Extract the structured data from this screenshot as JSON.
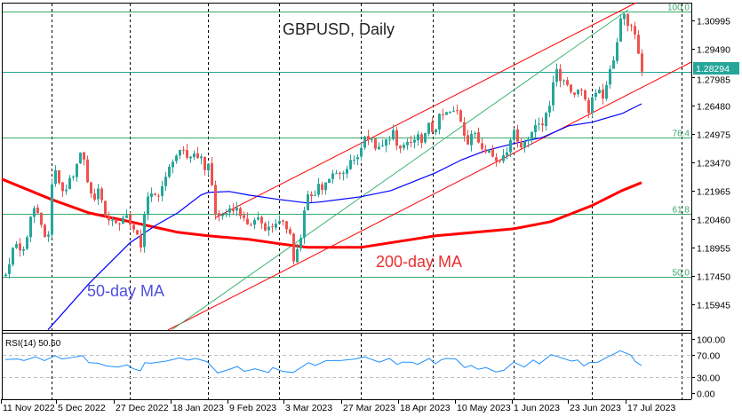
{
  "chart_data": {
    "type": "candlestick",
    "title": "GBPUSD, Daily",
    "symbol": "GBPUSD",
    "timeframe": "Daily",
    "bars": 180,
    "ylim": [
      1.1461,
      1.3209
    ],
    "price_ticks": [
      "1.30995",
      "1.29490",
      "1.27985",
      "1.26480",
      "1.24975",
      "1.23470",
      "1.21965",
      "1.20460",
      "1.18955",
      "1.17450",
      "1.15945"
    ],
    "date_ticks": [
      "11 Nov 2022",
      "5 Dec 2022",
      "27 Dec 2022",
      "18 Jan 2023",
      "9 Feb 2023",
      "3 Mar 2023",
      "27 Mar 2023",
      "18 Apr 2023",
      "10 May 2023",
      "1 Jun 2023",
      "23 Jun 2023",
      "17 Jul 2023"
    ],
    "current_price": "1.28294",
    "close_path": [
      [
        0,
        1.1766
      ],
      [
        1,
        1.1799
      ],
      [
        2,
        1.1893
      ],
      [
        3,
        1.1917
      ],
      [
        4.25,
        1.1884
      ],
      [
        5.5,
        1.187
      ],
      [
        6.75,
        1.2048
      ],
      [
        8,
        1.2105
      ],
      [
        9.75,
        1.2058
      ],
      [
        11,
        1.1949
      ],
      [
        12.25,
        1.1964
      ],
      [
        13,
        1.2236
      ],
      [
        14,
        1.2293
      ],
      [
        14.75,
        1.2269
      ],
      [
        15.5,
        1.2199
      ],
      [
        16.5,
        1.2199
      ],
      [
        18,
        1.2246
      ],
      [
        19.25,
        1.2269
      ],
      [
        20.5,
        1.2363
      ],
      [
        21.75,
        1.2419
      ],
      [
        22.75,
        1.2269
      ],
      [
        23.5,
        1.2175
      ],
      [
        24.75,
        1.2152
      ],
      [
        26,
        1.2199
      ],
      [
        27.25,
        1.2152
      ],
      [
        28,
        1.2048
      ],
      [
        29.75,
        1.2058
      ],
      [
        31,
        1.2025
      ],
      [
        32.25,
        1.2025
      ],
      [
        33.5,
        1.2081
      ],
      [
        35,
        1.2034
      ],
      [
        36,
        1.1987
      ],
      [
        38,
        1.1907
      ],
      [
        39,
        1.2081
      ],
      [
        40.25,
        1.2175
      ],
      [
        41.5,
        1.2166
      ],
      [
        42.75,
        1.2175
      ],
      [
        44,
        1.2222
      ],
      [
        45.25,
        1.2269
      ],
      [
        46.75,
        1.2363
      ],
      [
        48,
        1.2387
      ],
      [
        49.75,
        1.2401
      ],
      [
        51,
        1.2373
      ],
      [
        52.25,
        1.2387
      ],
      [
        53.5,
        1.2401
      ],
      [
        55,
        1.2363
      ],
      [
        56,
        1.2316
      ],
      [
        57.5,
        1.2363
      ],
      [
        58.5,
        1.2081
      ],
      [
        59.75,
        1.2058
      ],
      [
        61,
        1.2081
      ],
      [
        62.25,
        1.2058
      ],
      [
        63.5,
        1.2105
      ],
      [
        64.75,
        1.2105
      ],
      [
        66,
        1.2081
      ],
      [
        67,
        1.2034
      ],
      [
        68.5,
        1.2011
      ],
      [
        69.75,
        1.2034
      ],
      [
        71,
        1.2058
      ],
      [
        72.5,
        1.2011
      ],
      [
        74.25,
        1.1996
      ],
      [
        76,
        1.2034
      ],
      [
        77,
        1.2025
      ],
      [
        78.5,
        1.2011
      ],
      [
        80,
        1.1987
      ],
      [
        81,
        1.1822
      ],
      [
        82,
        1.1893
      ],
      [
        83.5,
        1.1964
      ],
      [
        84.25,
        1.2142
      ],
      [
        85.25,
        1.2184
      ],
      [
        86.5,
        1.2152
      ],
      [
        87.75,
        1.2246
      ],
      [
        89,
        1.2199
      ],
      [
        90.25,
        1.2269
      ],
      [
        91.75,
        1.2269
      ],
      [
        93.5,
        1.2293
      ],
      [
        94.75,
        1.2269
      ],
      [
        96.5,
        1.234
      ],
      [
        98,
        1.2363
      ],
      [
        99.75,
        1.2401
      ],
      [
        101,
        1.2504
      ],
      [
        102.25,
        1.2466
      ],
      [
        103.5,
        1.2448
      ],
      [
        104.75,
        1.241
      ],
      [
        106,
        1.2434
      ],
      [
        107.75,
        1.248
      ],
      [
        109,
        1.2513
      ],
      [
        110.25,
        1.2396
      ],
      [
        111.5,
        1.2434
      ],
      [
        113.5,
        1.2457
      ],
      [
        114.75,
        1.2443
      ],
      [
        116,
        1.248
      ],
      [
        117.5,
        1.2466
      ],
      [
        119,
        1.2542
      ],
      [
        120.5,
        1.2504
      ],
      [
        121.75,
        1.2584
      ],
      [
        123.5,
        1.2598
      ],
      [
        124.5,
        1.2612
      ],
      [
        126,
        1.2612
      ],
      [
        127.25,
        1.2622
      ],
      [
        128.5,
        1.2538
      ],
      [
        129.75,
        1.2448
      ],
      [
        131,
        1.2504
      ],
      [
        132.5,
        1.248
      ],
      [
        133.5,
        1.2434
      ],
      [
        134.75,
        1.2419
      ],
      [
        136,
        1.2434
      ],
      [
        137.25,
        1.2363
      ],
      [
        138.5,
        1.2349
      ],
      [
        139.75,
        1.2387
      ],
      [
        141,
        1.2419
      ],
      [
        142.25,
        1.25
      ],
      [
        143.5,
        1.2504
      ],
      [
        144.75,
        1.2434
      ],
      [
        146,
        1.2457
      ],
      [
        147.5,
        1.248
      ],
      [
        148.5,
        1.2551
      ],
      [
        149.5,
        1.2574
      ],
      [
        151,
        1.2528
      ],
      [
        152,
        1.2612
      ],
      [
        153,
        1.2659
      ],
      [
        154,
        1.2786
      ],
      [
        155,
        1.2824
      ],
      [
        156,
        1.2786
      ],
      [
        157,
        1.2795
      ],
      [
        157.75,
        1.2763
      ],
      [
        159,
        1.2739
      ],
      [
        160,
        1.2706
      ],
      [
        161,
        1.2739
      ],
      [
        162.25,
        1.2748
      ],
      [
        163.25,
        1.2645
      ],
      [
        164,
        1.2622
      ],
      [
        165,
        1.2692
      ],
      [
        166,
        1.2701
      ],
      [
        167,
        1.2716
      ],
      [
        168,
        1.2701
      ],
      [
        169,
        1.2739
      ],
      [
        170,
        1.2833
      ],
      [
        171,
        1.2904
      ],
      [
        172,
        1.2998
      ],
      [
        173,
        1.3115
      ],
      [
        174.25,
        1.3124
      ],
      [
        175.25,
        1.3077
      ],
      [
        176.5,
        1.3044
      ],
      [
        177.5,
        1.2974
      ],
      [
        178.5,
        1.2889
      ],
      [
        179,
        1.28294
      ]
    ],
    "ma50": {
      "label": "50-day MA",
      "color": "#0000ff",
      "points": [
        [
          12,
          1.1461
        ],
        [
          23.5,
          1.1705
        ],
        [
          35,
          1.1921
        ],
        [
          42,
          1.2011
        ],
        [
          48.5,
          1.2081
        ],
        [
          55,
          1.2175
        ],
        [
          57,
          1.2189
        ],
        [
          63,
          1.2194
        ],
        [
          68.5,
          1.2175
        ],
        [
          77,
          1.2152
        ],
        [
          85,
          1.2133
        ],
        [
          88.5,
          1.2138
        ],
        [
          100,
          1.2166
        ],
        [
          108.5,
          1.2199
        ],
        [
          121,
          1.2293
        ],
        [
          128.5,
          1.2363
        ],
        [
          135,
          1.241
        ],
        [
          143,
          1.2448
        ],
        [
          151,
          1.248
        ],
        [
          158.5,
          1.2542
        ],
        [
          165,
          1.2561
        ],
        [
          173.5,
          1.2607
        ],
        [
          179,
          1.2659
        ]
      ]
    },
    "ma200": {
      "label": "200-day MA",
      "color": "#ff0000",
      "points": [
        [
          -1,
          1.226
        ],
        [
          13,
          1.2152
        ],
        [
          23.5,
          1.2081
        ],
        [
          35,
          1.2034
        ],
        [
          48.5,
          1.1978
        ],
        [
          57,
          1.1959
        ],
        [
          68.5,
          1.194
        ],
        [
          77,
          1.1917
        ],
        [
          85,
          1.1898
        ],
        [
          100,
          1.1898
        ],
        [
          121,
          1.1959
        ],
        [
          143,
          1.1996
        ],
        [
          153.5,
          1.2034
        ],
        [
          165,
          1.2119
        ],
        [
          173.5,
          1.2199
        ],
        [
          179,
          1.2241
        ]
      ]
    },
    "fib_levels": [
      {
        "label": "100.0",
        "price": 1.3148
      },
      {
        "label": "76.4",
        "price": 1.2481
      },
      {
        "label": "61.8",
        "price": 1.2076
      },
      {
        "label": "50.0",
        "price": 1.1743
      }
    ],
    "rsi": {
      "label": "RSI(14) 50.60",
      "period": 14,
      "last": 50.6,
      "ticks": [
        "100.00",
        "70.00",
        "30.00",
        "0.00"
      ],
      "levels": [
        70,
        30
      ],
      "points": [
        [
          0,
          62
        ],
        [
          3.5,
          63
        ],
        [
          5.25,
          60
        ],
        [
          8.5,
          67
        ],
        [
          11,
          60
        ],
        [
          14,
          69
        ],
        [
          16,
          63
        ],
        [
          21.75,
          69
        ],
        [
          23.5,
          56
        ],
        [
          26,
          55
        ],
        [
          28.5,
          50
        ],
        [
          31.75,
          48
        ],
        [
          34.25,
          52
        ],
        [
          36,
          45
        ],
        [
          38,
          41
        ],
        [
          39.25,
          56
        ],
        [
          41,
          55
        ],
        [
          45.25,
          59
        ],
        [
          49,
          65
        ],
        [
          51.5,
          61
        ],
        [
          53.5,
          64
        ],
        [
          56.75,
          58
        ],
        [
          59.75,
          37
        ],
        [
          63.5,
          45
        ],
        [
          65.25,
          49
        ],
        [
          67.25,
          40
        ],
        [
          70.25,
          45
        ],
        [
          74,
          38
        ],
        [
          75.25,
          47
        ],
        [
          78,
          40
        ],
        [
          81,
          38
        ],
        [
          85.25,
          56
        ],
        [
          87.25,
          51
        ],
        [
          90.25,
          60
        ],
        [
          94.25,
          60
        ],
        [
          98.5,
          63
        ],
        [
          101,
          67
        ],
        [
          105.25,
          57
        ],
        [
          108,
          64
        ],
        [
          110.25,
          53
        ],
        [
          111.75,
          57
        ],
        [
          114.25,
          57
        ],
        [
          116,
          53
        ],
        [
          119.25,
          64
        ],
        [
          121,
          54
        ],
        [
          122.75,
          62
        ],
        [
          124.25,
          64
        ],
        [
          126.75,
          63
        ],
        [
          129.25,
          47
        ],
        [
          131,
          51
        ],
        [
          133,
          44
        ],
        [
          135.25,
          47
        ],
        [
          138,
          39
        ],
        [
          140.25,
          42
        ],
        [
          143,
          57
        ],
        [
          146,
          48
        ],
        [
          148.5,
          61
        ],
        [
          150.25,
          54
        ],
        [
          153.5,
          71
        ],
        [
          156,
          66
        ],
        [
          159.25,
          59
        ],
        [
          161,
          61
        ],
        [
          162.75,
          50
        ],
        [
          164.25,
          56
        ],
        [
          166.75,
          57
        ],
        [
          169.25,
          66
        ],
        [
          173,
          78
        ],
        [
          176,
          70
        ],
        [
          177.25,
          58
        ],
        [
          179,
          50.6
        ]
      ]
    },
    "annotations": {
      "ma50": "50-day MA",
      "ma200": "200-day MA"
    },
    "colors": {
      "up": "#26a69a",
      "down": "#ef5350",
      "fib": "#3aa86a",
      "price_line": "#26a69a",
      "rsi": "#1e90ff",
      "channel": "#ff0000",
      "fan": "#3cb371",
      "ma50_text": "#5050e0",
      "ma200_text": "#e83030"
    }
  }
}
